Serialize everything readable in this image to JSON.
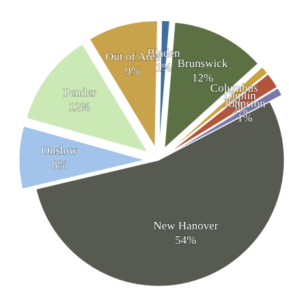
{
  "chart_data": {
    "type": "pie",
    "categories": [
      "Bladen",
      "Brunswick",
      "Columbus",
      "Duplin",
      "Johnston",
      "New Hanover",
      "Onslow",
      "Pender",
      "Out of Area"
    ],
    "values": [
      1,
      12,
      1,
      2,
      1,
      54,
      8,
      12,
      9
    ],
    "value_labels": [
      "1%",
      "12%",
      "1%",
      "2%",
      "1%",
      "54%",
      "8%",
      "12%",
      "9%"
    ],
    "colors": [
      "#3d6e9e",
      "#5b7143",
      "#c9a23f",
      "#b2553a",
      "#7a78a8",
      "#565a51",
      "#a3c4ea",
      "#cbe9b4",
      "#c9a24c"
    ]
  }
}
